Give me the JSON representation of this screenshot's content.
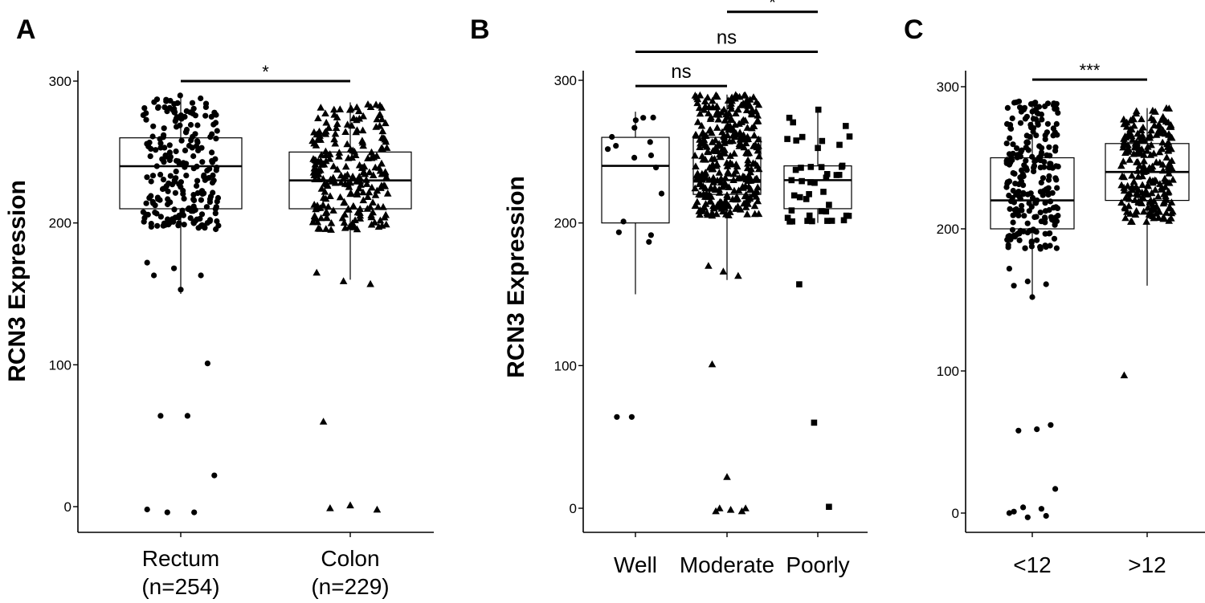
{
  "chart_data": [
    {
      "type": "boxplot",
      "panel_label": "A",
      "ylabel": "RCN3 Expression",
      "ylim": [
        -20,
        310
      ],
      "yticks": [
        0,
        100,
        200,
        300
      ],
      "categories": [
        {
          "label": "Rectum",
          "sublabel": "(n=254)",
          "shape": "circle",
          "box": {
            "q1": 210,
            "median": 240,
            "q3": 260,
            "whisker_low": 150,
            "whisker_high": 290
          }
        },
        {
          "label": "Colon",
          "sublabel": "(n=229)",
          "shape": "triangle",
          "box": {
            "q1": 210,
            "median": 230,
            "q3": 250,
            "whisker_low": 160,
            "whisker_high": 285
          }
        }
      ],
      "outliers": [
        {
          "group": 0,
          "values": [
            172,
            168,
            163,
            163,
            153,
            101,
            64,
            64,
            22,
            -4,
            -4,
            -2
          ]
        },
        {
          "group": 1,
          "values": [
            165,
            159,
            157,
            60,
            1,
            -2,
            -1
          ]
        }
      ],
      "significance": [
        {
          "from": 0,
          "to": 1,
          "y": 300,
          "label": "*"
        }
      ]
    },
    {
      "type": "boxplot",
      "panel_label": "B",
      "ylabel": "RCN3 Expression",
      "ylim": [
        -20,
        310
      ],
      "yticks": [
        0,
        100,
        200,
        300
      ],
      "categories": [
        {
          "label": "Well",
          "shape": "circle",
          "box": {
            "q1": 200,
            "median": 240,
            "q3": 260,
            "whisker_low": 150,
            "whisker_high": 278
          }
        },
        {
          "label": "Moderate",
          "shape": "triangle",
          "box": {
            "q1": 220,
            "median": 230,
            "q3": 260,
            "whisker_low": 160,
            "whisker_high": 290
          }
        },
        {
          "label": "Poorly",
          "shape": "square",
          "box": {
            "q1": 210,
            "median": 230,
            "q3": 240,
            "whisker_low": 200,
            "whisker_high": 280
          }
        }
      ],
      "outliers": [
        {
          "group": 0,
          "values": [
            64,
            64
          ]
        },
        {
          "group": 1,
          "values": [
            170,
            166,
            163,
            101,
            22,
            -2,
            -2,
            -1,
            0,
            0
          ]
        },
        {
          "group": 2,
          "values": [
            157,
            60,
            1
          ]
        }
      ],
      "significance": [
        {
          "from": 0,
          "to": 1,
          "y": 296,
          "label": "ns"
        },
        {
          "from": 0,
          "to": 2,
          "y": 320,
          "label": "ns"
        },
        {
          "from": 1,
          "to": 2,
          "y": 348,
          "label": "*"
        }
      ]
    },
    {
      "type": "boxplot",
      "panel_label": "C",
      "ylabel": "",
      "ylim": [
        -20,
        310
      ],
      "yticks": [
        0,
        100,
        200,
        300
      ],
      "categories": [
        {
          "label": "<12",
          "shape": "circle",
          "box": {
            "q1": 200,
            "median": 220,
            "q3": 250,
            "whisker_low": 150,
            "whisker_high": 290
          }
        },
        {
          "label": ">12",
          "shape": "triangle",
          "box": {
            "q1": 220,
            "median": 240,
            "q3": 260,
            "whisker_low": 160,
            "whisker_high": 285
          }
        }
      ],
      "outliers": [
        {
          "group": 0,
          "values": [
            172,
            163,
            161,
            160,
            152,
            62,
            58,
            59,
            17,
            4,
            3,
            0,
            -3,
            -2,
            1
          ]
        },
        {
          "group": 1,
          "values": [
            97
          ]
        }
      ],
      "significance": [
        {
          "from": 0,
          "to": 1,
          "y": 305,
          "label": "***"
        }
      ]
    }
  ]
}
